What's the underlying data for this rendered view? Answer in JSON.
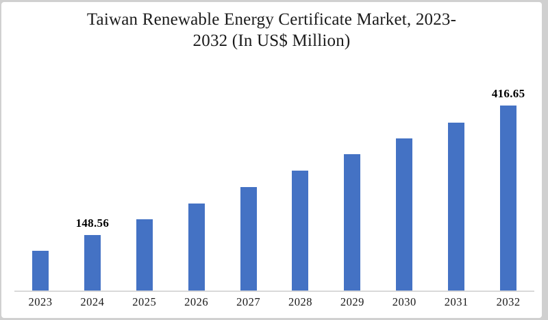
{
  "frame": {
    "background": "#d0d0d0",
    "card_background": "#ffffff"
  },
  "chart_data": {
    "type": "bar",
    "title": "Taiwan Renewable Energy Certificate Market, 2023-2032 (In US$ Million)",
    "title_lines": [
      "Taiwan Renewable Energy Certificate Market, 2023-",
      "2032 (In US$ Million)"
    ],
    "unit": "US$ Million",
    "categories": [
      "2023",
      "2024",
      "2025",
      "2026",
      "2027",
      "2028",
      "2029",
      "2030",
      "2031",
      "2032"
    ],
    "values": [
      116,
      148.56,
      181,
      214,
      248,
      282,
      316,
      349,
      382,
      416.65
    ],
    "bar_labels": [
      "",
      "148.56",
      "",
      "",
      "",
      "",
      "",
      "",
      "",
      "416.65"
    ],
    "xlabel": "",
    "ylabel": "",
    "ylim": [
      33.5,
      450
    ],
    "grid": false,
    "legend": false,
    "bar_color": "#4472C4",
    "axis_line_color": "#D9D9D9",
    "title_color": "#1a1a1a",
    "tick_color": "#1a1a1a",
    "data_label_color": "#000000"
  }
}
